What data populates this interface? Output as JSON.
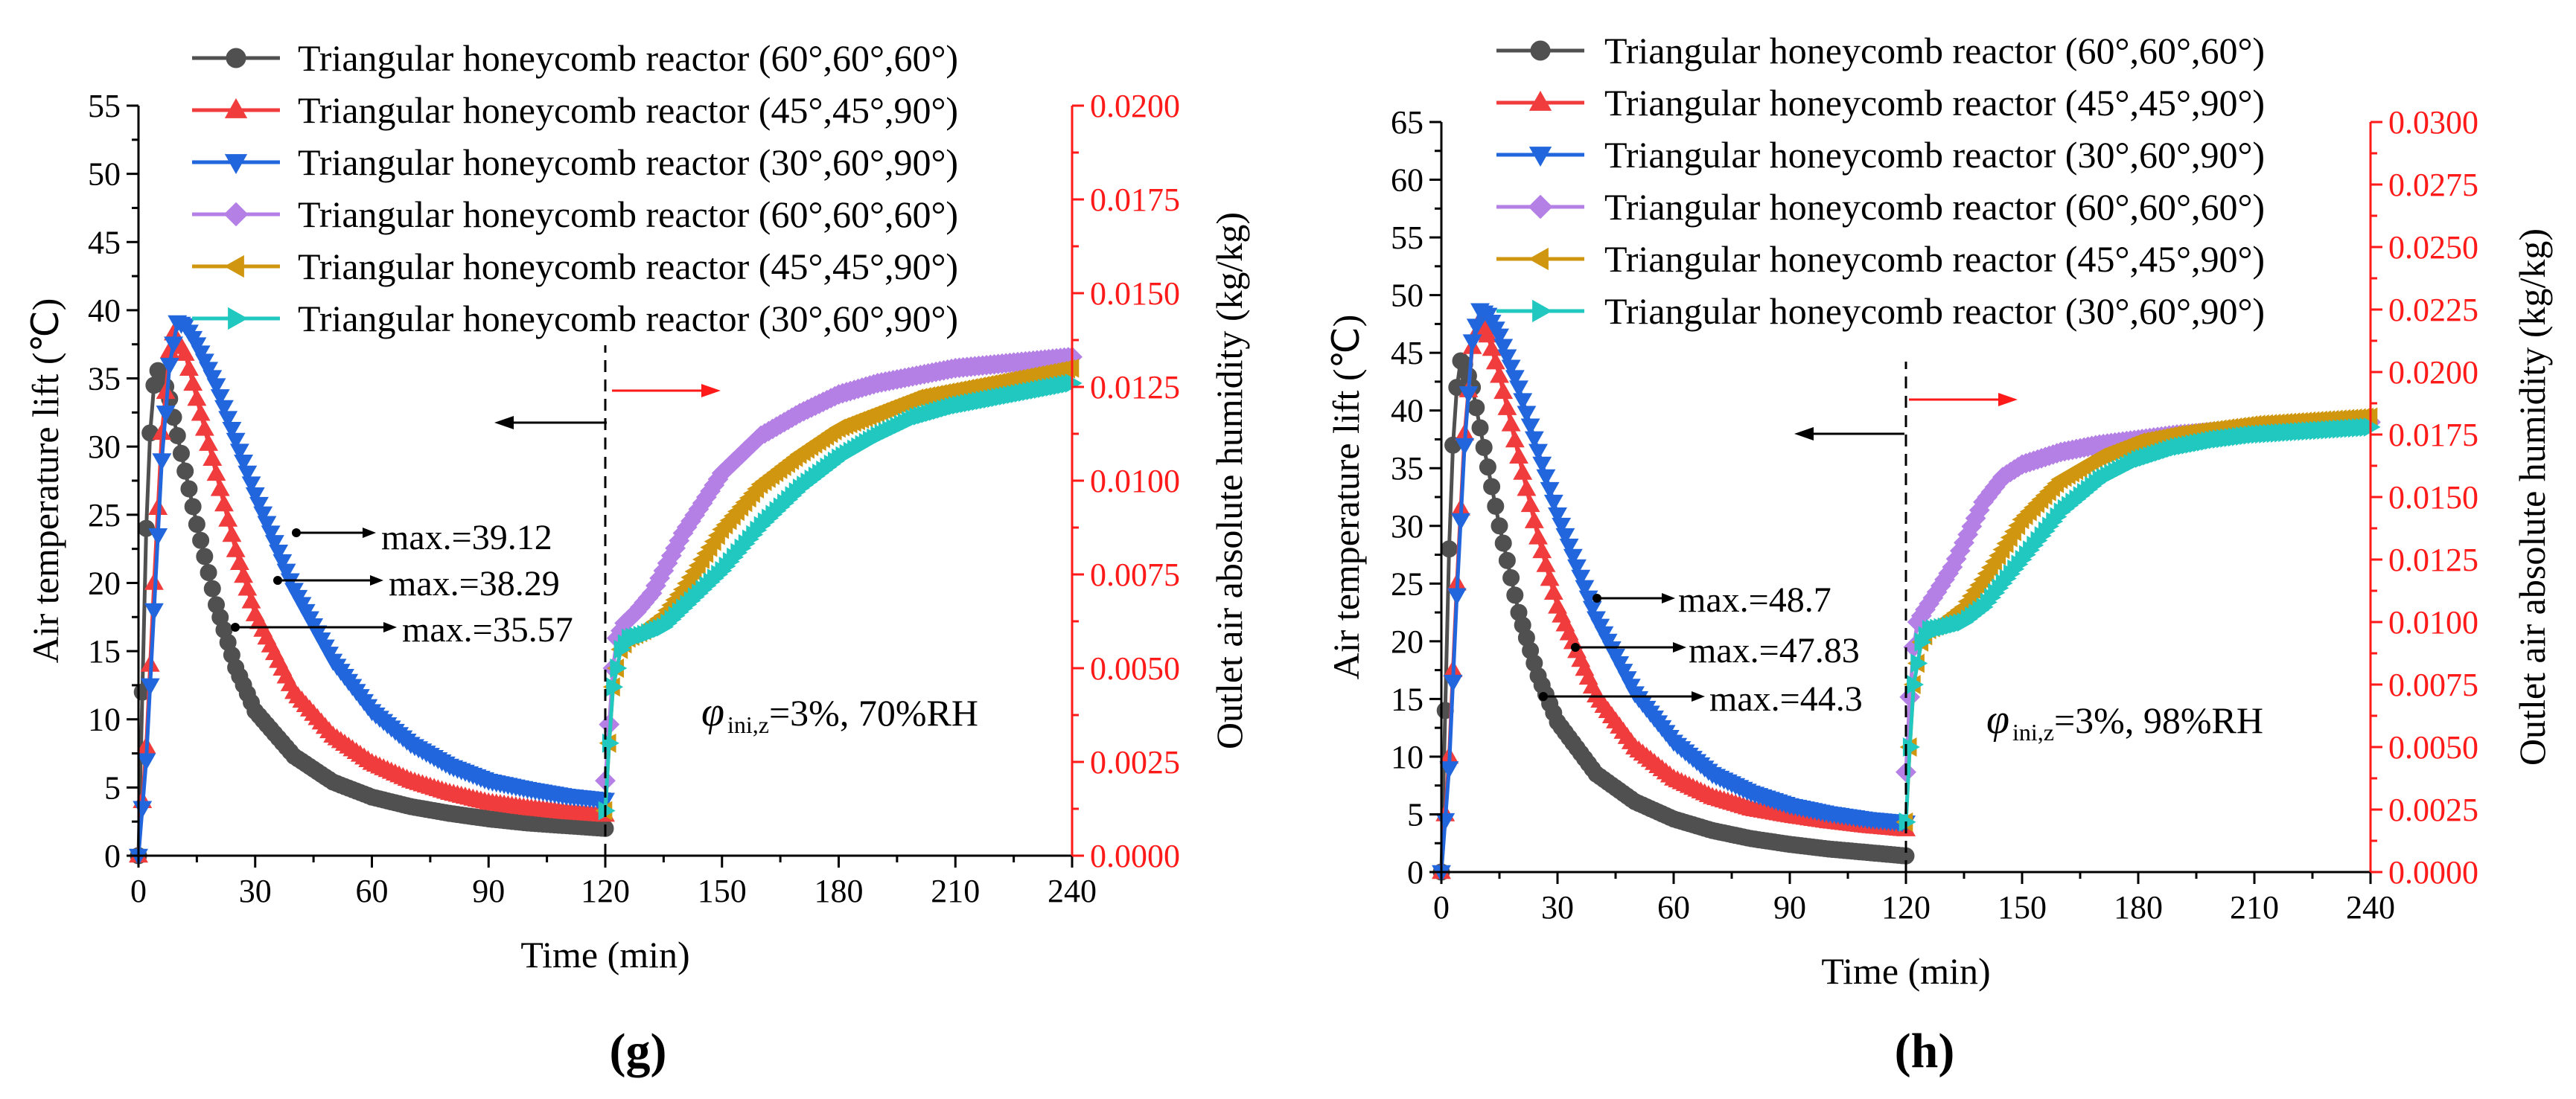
{
  "chart_data": [
    {
      "type": "line",
      "panel_label": "(g)",
      "xlabel": "Time (min)",
      "ylabel": "Air temperature lift (℃)",
      "y2label": "Outlet air absolute humidity (kg/kg)",
      "xlim": [
        0,
        240
      ],
      "ylim": [
        0,
        55
      ],
      "y2lim": [
        0,
        0.02
      ],
      "x_ticks": [
        "0",
        "30",
        "60",
        "90",
        "120",
        "150",
        "180",
        "210",
        "240"
      ],
      "y_ticks": [
        "0",
        "5",
        "10",
        "15",
        "20",
        "25",
        "30",
        "35",
        "40",
        "45",
        "50",
        "55"
      ],
      "y2_ticks": [
        "0.0000",
        "0.0025",
        "0.0050",
        "0.0075",
        "0.0100",
        "0.0125",
        "0.0150",
        "0.0175",
        "0.0200"
      ],
      "legend": [
        "Triangular honeycomb reactor (60°,60°,60°)",
        "Triangular honeycomb reactor (45°,45°,90°)",
        "Triangular honeycomb reactor (30°,60°,90°)",
        "Triangular honeycomb reactor (60°,60°,60°)",
        "Triangular honeycomb reactor (45°,45°,90°)",
        "Triangular honeycomb reactor (30°,60°,90°)"
      ],
      "annotations": [
        "max.=39.12",
        "max.=38.29",
        "max.=35.57"
      ],
      "condition": {
        "symbol": "φ",
        "sub": "ini,z",
        "text": "=3%, 70%RH"
      },
      "series": [
        {
          "name": "Triangular honeycomb reactor (60°,60°,60°)",
          "axis": "left",
          "marker": "circle",
          "color": "#505050",
          "x": [
            0,
            1,
            2,
            3,
            4,
            5,
            6,
            8,
            10,
            15,
            20,
            25,
            30,
            40,
            50,
            60,
            70,
            80,
            90,
            100,
            110,
            120
          ],
          "y": [
            0,
            12,
            24,
            31,
            34.5,
            35.57,
            35.3,
            33.5,
            30.8,
            24.3,
            18.4,
            13.8,
            10.6,
            7.3,
            5.4,
            4.3,
            3.6,
            3.1,
            2.7,
            2.4,
            2.2,
            2.0
          ]
        },
        {
          "name": "Triangular honeycomb reactor (45°,45°,90°)",
          "axis": "left",
          "marker": "triangle-up",
          "color": "#f03c3c",
          "x": [
            0,
            2,
            4,
            6,
            8,
            9,
            12,
            15,
            20,
            25,
            30,
            40,
            50,
            60,
            70,
            80,
            90,
            100,
            110,
            120
          ],
          "y": [
            0,
            8,
            20,
            31,
            37,
            38.29,
            36.8,
            33.5,
            28,
            22.4,
            17.7,
            12,
            8.8,
            6.8,
            5.5,
            4.6,
            3.9,
            3.5,
            3.2,
            3.0
          ]
        },
        {
          "name": "Triangular honeycomb reactor (30°,60°,90°)",
          "axis": "left",
          "marker": "triangle-down",
          "color": "#2266dd",
          "x": [
            0,
            2,
            4,
            6,
            8,
            10,
            12,
            15,
            20,
            25,
            30,
            40,
            50,
            60,
            70,
            80,
            90,
            100,
            110,
            120
          ],
          "y": [
            0,
            7,
            18,
            29,
            36,
            39.12,
            38.9,
            37.5,
            34.5,
            30.5,
            26.5,
            19.5,
            14.3,
            10.6,
            8.2,
            6.6,
            5.5,
            4.9,
            4.4,
            4.1
          ]
        },
        {
          "name": "Triangular honeycomb reactor (60°,60°,60°)",
          "axis": "right",
          "marker": "diamond",
          "color": "#b480e6",
          "x": [
            120,
            121,
            122,
            123,
            125,
            128,
            132,
            136,
            140,
            145,
            150,
            160,
            170,
            180,
            190,
            200,
            210,
            220,
            230,
            240
          ],
          "y": [
            0.002,
            0.0035,
            0.005,
            0.0058,
            0.0062,
            0.0065,
            0.007,
            0.0078,
            0.0086,
            0.0094,
            0.0102,
            0.0112,
            0.0118,
            0.0123,
            0.0126,
            0.0128,
            0.013,
            0.0131,
            0.0132,
            0.0133
          ]
        },
        {
          "name": "Triangular honeycomb reactor (45°,45°,90°)",
          "axis": "right",
          "marker": "triangle-left",
          "color": "#d0960f",
          "x": [
            120,
            121,
            122,
            124,
            126,
            130,
            135,
            140,
            145,
            150,
            160,
            170,
            180,
            190,
            200,
            210,
            220,
            230,
            240
          ],
          "y": [
            0.0012,
            0.003,
            0.0045,
            0.0055,
            0.0058,
            0.006,
            0.0064,
            0.0071,
            0.0079,
            0.0087,
            0.0099,
            0.0107,
            0.0114,
            0.0118,
            0.0122,
            0.0124,
            0.0126,
            0.0128,
            0.013
          ]
        },
        {
          "name": "Triangular honeycomb reactor (30°,60°,90°)",
          "axis": "right",
          "marker": "triangle-right",
          "color": "#20c8c0",
          "x": [
            120,
            121,
            122,
            124,
            126,
            130,
            135,
            140,
            150,
            160,
            170,
            180,
            190,
            200,
            210,
            220,
            230,
            240
          ],
          "y": [
            0.0012,
            0.003,
            0.0045,
            0.0055,
            0.0058,
            0.0059,
            0.0061,
            0.0066,
            0.0076,
            0.0088,
            0.0098,
            0.0106,
            0.0112,
            0.0117,
            0.012,
            0.0122,
            0.0124,
            0.0126
          ]
        }
      ]
    },
    {
      "type": "line",
      "panel_label": "(h)",
      "xlabel": "Time (min)",
      "ylabel": "Air temperature lift (℃)",
      "y2label": "Outlet air absolute humidity (kg/kg)",
      "xlim": [
        0,
        240
      ],
      "ylim": [
        0,
        65
      ],
      "y2lim": [
        0,
        0.03
      ],
      "x_ticks": [
        "0",
        "30",
        "60",
        "90",
        "120",
        "150",
        "180",
        "210",
        "240"
      ],
      "y_ticks": [
        "0",
        "5",
        "10",
        "15",
        "20",
        "25",
        "30",
        "35",
        "40",
        "45",
        "50",
        "55",
        "60",
        "65"
      ],
      "y2_ticks": [
        "0.0000",
        "0.0025",
        "0.0050",
        "0.0075",
        "0.0100",
        "0.0125",
        "0.0150",
        "0.0175",
        "0.0200",
        "0.0225",
        "0.0250",
        "0.0275",
        "0.0300"
      ],
      "legend": [
        "Triangular honeycomb reactor (60°,60°,60°)",
        "Triangular honeycomb reactor (45°,45°,90°)",
        "Triangular honeycomb reactor (30°,60°,90°)",
        "Triangular honeycomb reactor (60°,60°,60°)",
        "Triangular honeycomb reactor (45°,45°,90°)",
        "Triangular honeycomb reactor (30°,60°,90°)"
      ],
      "annotations": [
        "max.=48.7",
        "max.=47.83",
        "max.=44.3"
      ],
      "condition": {
        "symbol": "φ",
        "sub": "ini,z",
        "text": "=3%, 98%RH"
      },
      "series": [
        {
          "name": "Triangular honeycomb reactor (60°,60°,60°)",
          "axis": "left",
          "marker": "circle",
          "color": "#505050",
          "x": [
            0,
            1,
            2,
            3,
            4,
            5,
            6,
            8,
            10,
            15,
            20,
            25,
            30,
            40,
            50,
            60,
            70,
            80,
            90,
            100,
            110,
            120
          ],
          "y": [
            0,
            14,
            28,
            37,
            42,
            44.3,
            44,
            42,
            38.5,
            30,
            22.5,
            17,
            13,
            8.5,
            6.1,
            4.6,
            3.6,
            2.9,
            2.4,
            2.0,
            1.7,
            1.4
          ]
        },
        {
          "name": "Triangular honeycomb reactor (45°,45°,90°)",
          "axis": "left",
          "marker": "triangle-up",
          "color": "#f03c3c",
          "x": [
            0,
            2,
            4,
            6,
            8,
            10,
            12,
            15,
            20,
            25,
            30,
            40,
            50,
            60,
            70,
            80,
            90,
            100,
            110,
            120
          ],
          "y": [
            0,
            10,
            25,
            38,
            45.5,
            47.83,
            46.5,
            43,
            36,
            29,
            23,
            15.3,
            10.8,
            8.1,
            6.5,
            5.5,
            4.9,
            4.4,
            4.0,
            3.7
          ]
        },
        {
          "name": "Triangular honeycomb reactor (30°,60°,90°)",
          "axis": "left",
          "marker": "triangle-down",
          "color": "#2266dd",
          "x": [
            0,
            2,
            4,
            6,
            8,
            10,
            12,
            15,
            20,
            25,
            30,
            40,
            50,
            60,
            70,
            80,
            90,
            100,
            110,
            120
          ],
          "y": [
            0,
            9,
            24,
            37,
            46,
            48.7,
            48.3,
            46.5,
            42,
            36.5,
            31,
            22,
            15.5,
            11.3,
            8.5,
            6.9,
            5.8,
            5.1,
            4.6,
            4.3
          ]
        },
        {
          "name": "Triangular honeycomb reactor (60°,60°,60°)",
          "axis": "right",
          "marker": "diamond",
          "color": "#b480e6",
          "x": [
            120,
            121,
            122,
            123,
            125,
            128,
            132,
            136,
            140,
            145,
            150,
            160,
            170,
            180,
            190,
            200,
            210,
            220,
            230,
            240
          ],
          "y": [
            0.004,
            0.007,
            0.009,
            0.01,
            0.0105,
            0.0112,
            0.0122,
            0.0135,
            0.0148,
            0.0158,
            0.0163,
            0.0168,
            0.0171,
            0.0173,
            0.0175,
            0.0176,
            0.0177,
            0.0178,
            0.0179,
            0.018
          ]
        },
        {
          "name": "Triangular honeycomb reactor (45°,45°,90°)",
          "axis": "right",
          "marker": "triangle-left",
          "color": "#d0960f",
          "x": [
            120,
            121,
            122,
            124,
            126,
            130,
            135,
            140,
            145,
            150,
            160,
            170,
            180,
            190,
            200,
            210,
            220,
            230,
            240
          ],
          "y": [
            0.002,
            0.005,
            0.0075,
            0.0092,
            0.0097,
            0.01,
            0.0106,
            0.0117,
            0.0129,
            0.0141,
            0.0157,
            0.0166,
            0.0172,
            0.0175,
            0.0177,
            0.0179,
            0.018,
            0.0181,
            0.0182
          ]
        },
        {
          "name": "Triangular honeycomb reactor (30°,60°,90°)",
          "axis": "right",
          "marker": "triangle-right",
          "color": "#20c8c0",
          "x": [
            120,
            121,
            122,
            124,
            126,
            130,
            135,
            140,
            150,
            160,
            170,
            180,
            190,
            200,
            210,
            220,
            230,
            240
          ],
          "y": [
            0.002,
            0.005,
            0.0075,
            0.0092,
            0.0097,
            0.0098,
            0.01,
            0.0106,
            0.0125,
            0.0144,
            0.0157,
            0.0165,
            0.017,
            0.0173,
            0.0175,
            0.0176,
            0.0177,
            0.0178
          ]
        }
      ]
    }
  ]
}
